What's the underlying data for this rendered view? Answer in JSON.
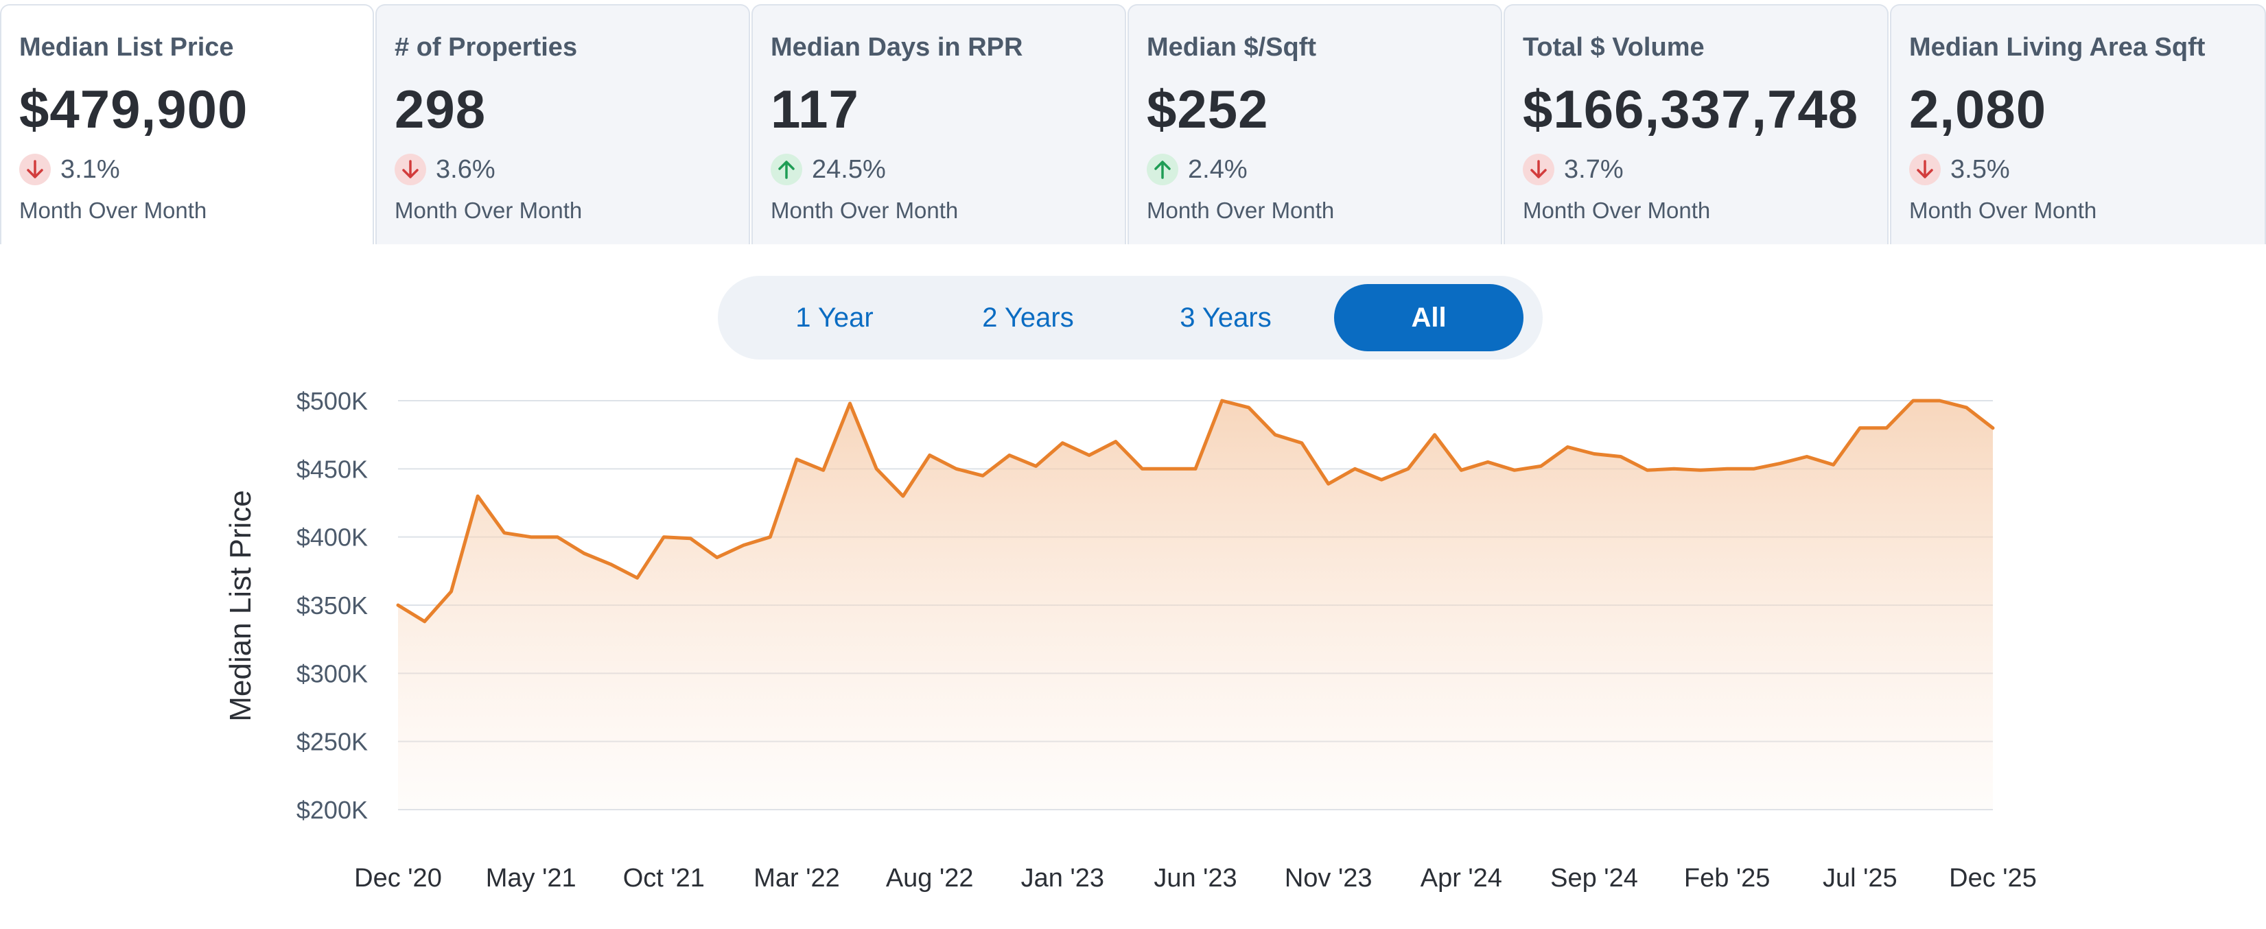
{
  "metrics": [
    {
      "label": "Median List Price",
      "value": "$479,900",
      "change": "3.1%",
      "direction": "down",
      "caption": "Month Over Month"
    },
    {
      "label": "# of Properties",
      "value": "298",
      "change": "3.6%",
      "direction": "down",
      "caption": "Month Over Month"
    },
    {
      "label": "Median Days in RPR",
      "value": "117",
      "change": "24.5%",
      "direction": "up",
      "caption": "Month Over Month"
    },
    {
      "label": "Median $/Sqft",
      "value": "$252",
      "change": "2.4%",
      "direction": "up",
      "caption": "Month Over Month"
    },
    {
      "label": "Total $ Volume",
      "value": "$166,337,748",
      "change": "3.7%",
      "direction": "down",
      "caption": "Month Over Month"
    },
    {
      "label": "Median Living Area Sqft",
      "value": "2,080",
      "change": "3.5%",
      "direction": "down",
      "caption": "Month Over Month"
    }
  ],
  "range_options": [
    "1 Year",
    "2 Years",
    "3 Years",
    "All"
  ],
  "selected_range": "All",
  "colors": {
    "accent": "#0a6cc2",
    "line": "#e8812c",
    "down": "#d23c3c",
    "up": "#1f9d55"
  },
  "chart_data": {
    "type": "area",
    "title": "",
    "xlabel": "",
    "ylabel": "Median List Price",
    "ylim": [
      200000,
      500000
    ],
    "yticks": [
      200000,
      250000,
      300000,
      350000,
      400000,
      450000,
      500000
    ],
    "ytick_labels": [
      "$200K",
      "$250K",
      "$300K",
      "$350K",
      "$400K",
      "$450K",
      "$500K"
    ],
    "xtick_labels": [
      "Dec '20",
      "May '21",
      "Oct '21",
      "Mar '22",
      "Aug '22",
      "Jan '23",
      "Jun '23",
      "Nov '23",
      "Apr '24",
      "Sep '24",
      "Feb '25",
      "Jul '25",
      "Dec '25"
    ],
    "series": [
      {
        "name": "Median List Price",
        "values": [
          350000,
          338000,
          360000,
          430000,
          403000,
          400000,
          400000,
          388000,
          380000,
          370000,
          400000,
          399000,
          385000,
          394000,
          400000,
          457000,
          449000,
          498000,
          450000,
          430000,
          460000,
          450000,
          445000,
          460000,
          452000,
          469000,
          460000,
          470000,
          450000,
          450000,
          450000,
          500000,
          495000,
          475000,
          469000,
          439000,
          450000,
          442000,
          450000,
          475000,
          449000,
          455000,
          449000,
          452000,
          466000,
          461000,
          459000,
          449000,
          450000,
          449000,
          450000,
          450000,
          454000,
          459000,
          453000,
          480000,
          480000,
          500000,
          500000,
          495000,
          479900
        ]
      }
    ]
  }
}
